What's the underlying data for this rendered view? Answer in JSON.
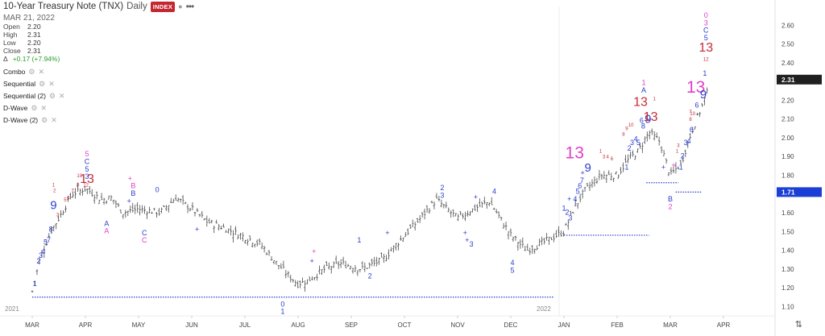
{
  "header": {
    "title": "10-Year Treasury Note (TNX)",
    "interval": "Daily",
    "badge": "INDEX",
    "date": "MAR 21, 2022",
    "ohlc": [
      {
        "label": "Open",
        "value": "2.20"
      },
      {
        "label": "High",
        "value": "2.31"
      },
      {
        "label": "Low",
        "value": "2.20"
      },
      {
        "label": "Close",
        "value": "2.31"
      }
    ],
    "change_label": "Δ",
    "change_value": "+0.17 (+7.94%)"
  },
  "studies": [
    {
      "label": "Combo"
    },
    {
      "label": "Sequential"
    },
    {
      "label": "Sequential (2)"
    },
    {
      "label": "D-Wave"
    },
    {
      "label": "D-Wave (2)"
    }
  ],
  "colors": {
    "bar": "#4a4a4a",
    "blue": "#2a3fcf",
    "magenta": "#e040c8",
    "red": "#c62b3a",
    "level": "#2a3fcf"
  },
  "chart_data": {
    "type": "ohlc",
    "ylim": [
      1.05,
      2.7
    ],
    "yticks": [
      "1.10",
      "1.20",
      "1.30",
      "1.40",
      "1.50",
      "1.60",
      "1.70",
      "1.80",
      "1.90",
      "2.00",
      "2.10",
      "2.20",
      "2.30",
      "2.40",
      "2.50",
      "2.60"
    ],
    "months": [
      "MAR",
      "APR",
      "MAY",
      "JUN",
      "JUL",
      "AUG",
      "SEP",
      "OCT",
      "NOV",
      "DEC",
      "JAN",
      "FEB",
      "MAR",
      "APR"
    ],
    "year_labels": [
      {
        "label": "2021",
        "month_index": 0
      },
      {
        "label": "2022",
        "month_index": 10
      }
    ],
    "last_price": {
      "value": 2.31,
      "label": "2.31"
    },
    "level_price": {
      "value": 1.71,
      "label": "1.71"
    },
    "price_path": [
      [
        0,
        1.18
      ],
      [
        0.15,
        1.36
      ],
      [
        0.35,
        1.5
      ],
      [
        0.5,
        1.57
      ],
      [
        0.75,
        1.7
      ],
      [
        1.0,
        1.73
      ],
      [
        1.3,
        1.67
      ],
      [
        1.5,
        1.68
      ],
      [
        1.7,
        1.6
      ],
      [
        2.0,
        1.62
      ],
      [
        2.4,
        1.6
      ],
      [
        2.7,
        1.68
      ],
      [
        3.0,
        1.62
      ],
      [
        3.3,
        1.55
      ],
      [
        3.6,
        1.52
      ],
      [
        4.0,
        1.47
      ],
      [
        4.3,
        1.43
      ],
      [
        4.6,
        1.33
      ],
      [
        4.8,
        1.27
      ],
      [
        5.0,
        1.22
      ],
      [
        5.2,
        1.24
      ],
      [
        5.5,
        1.3
      ],
      [
        5.8,
        1.33
      ],
      [
        6.2,
        1.3
      ],
      [
        6.6,
        1.35
      ],
      [
        7.0,
        1.48
      ],
      [
        7.3,
        1.57
      ],
      [
        7.6,
        1.67
      ],
      [
        8.0,
        1.57
      ],
      [
        8.3,
        1.62
      ],
      [
        8.6,
        1.66
      ],
      [
        9.0,
        1.48
      ],
      [
        9.3,
        1.4
      ],
      [
        9.6,
        1.44
      ],
      [
        10.0,
        1.5
      ],
      [
        10.2,
        1.63
      ],
      [
        10.4,
        1.72
      ],
      [
        10.7,
        1.8
      ],
      [
        11.0,
        1.8
      ],
      [
        11.2,
        1.88
      ],
      [
        11.4,
        1.93
      ],
      [
        11.6,
        2.03
      ],
      [
        11.8,
        1.98
      ],
      [
        12.0,
        1.8
      ],
      [
        12.2,
        1.86
      ],
      [
        12.4,
        2.03
      ],
      [
        12.6,
        2.17
      ],
      [
        12.72,
        2.26
      ]
    ],
    "level_lines": [
      {
        "price": 1.15,
        "from_month": 0,
        "to_month": 9.8
      },
      {
        "price": 1.48,
        "from_month": 10.0,
        "to_month": 11.6
      },
      {
        "price": 1.76,
        "from_month": 11.55,
        "to_month": 12.15
      },
      {
        "price": 1.71,
        "from_month": 12.1,
        "to_month": 12.6
      }
    ],
    "annotations": [
      {
        "text": "1",
        "m": 0.05,
        "p": 1.21,
        "c": "blue",
        "s": 9
      },
      {
        "text": "2",
        "m": 0.12,
        "p": 1.33,
        "c": "blue",
        "s": 9
      },
      {
        "text": "3",
        "m": 0.16,
        "p": 1.36,
        "c": "blue",
        "s": 9
      },
      {
        "text": "4",
        "m": 0.21,
        "p": 1.38,
        "c": "blue",
        "s": 9
      },
      {
        "text": "5",
        "m": 0.25,
        "p": 1.43,
        "c": "blue",
        "s": 9
      },
      {
        "text": "7",
        "m": 0.31,
        "p": 1.44,
        "c": "blue",
        "s": 9
      },
      {
        "text": "8",
        "m": 0.35,
        "p": 1.5,
        "c": "blue",
        "s": 9
      },
      {
        "text": "9",
        "m": 0.4,
        "p": 1.62,
        "c": "blue",
        "s": 15
      },
      {
        "text": "1",
        "m": 0.4,
        "p": 1.74,
        "c": "red",
        "s": 6
      },
      {
        "text": "2",
        "m": 0.42,
        "p": 1.71,
        "c": "red",
        "s": 6
      },
      {
        "text": "3",
        "m": 0.48,
        "p": 1.58,
        "c": "red",
        "s": 6
      },
      {
        "text": "5",
        "m": 0.62,
        "p": 1.66,
        "c": "red",
        "s": 6
      },
      {
        "text": "6",
        "m": 0.68,
        "p": 1.67,
        "c": "red",
        "s": 6
      },
      {
        "text": "7",
        "m": 0.76,
        "p": 1.71,
        "c": "red",
        "s": 6
      },
      {
        "text": "8",
        "m": 0.86,
        "p": 1.74,
        "c": "red",
        "s": 6
      },
      {
        "text": "10",
        "m": 0.89,
        "p": 1.79,
        "c": "red",
        "s": 6
      },
      {
        "text": "12",
        "m": 1.01,
        "p": 1.74,
        "c": "red",
        "s": 6
      },
      {
        "text": "13",
        "m": 1.03,
        "p": 1.76,
        "c": "red",
        "s": 16
      },
      {
        "text": "5",
        "m": 1.03,
        "p": 1.9,
        "c": "magenta",
        "s": 9
      },
      {
        "text": "C",
        "m": 1.03,
        "p": 1.86,
        "c": "blue",
        "s": 9
      },
      {
        "text": "5",
        "m": 1.03,
        "p": 1.82,
        "c": "blue",
        "s": 9
      },
      {
        "text": "3",
        "m": 1.03,
        "p": 1.78,
        "c": "blue",
        "s": 9
      },
      {
        "text": "B",
        "m": 1.9,
        "p": 1.73,
        "c": "magenta",
        "s": 9
      },
      {
        "text": "B",
        "m": 1.9,
        "p": 1.69,
        "c": "blue",
        "s": 9
      },
      {
        "text": "+",
        "m": 1.82,
        "p": 1.65,
        "c": "blue",
        "s": 9
      },
      {
        "text": "+",
        "m": 1.84,
        "p": 1.77,
        "c": "magenta",
        "s": 9
      },
      {
        "text": "0",
        "m": 2.35,
        "p": 1.71,
        "c": "blue",
        "s": 9
      },
      {
        "text": "A",
        "m": 1.4,
        "p": 1.53,
        "c": "blue",
        "s": 9
      },
      {
        "text": "A",
        "m": 1.4,
        "p": 1.49,
        "c": "magenta",
        "s": 9
      },
      {
        "text": "C",
        "m": 2.11,
        "p": 1.48,
        "c": "blue",
        "s": 9
      },
      {
        "text": "C",
        "m": 2.11,
        "p": 1.44,
        "c": "magenta",
        "s": 9
      },
      {
        "text": "+",
        "m": 3.1,
        "p": 1.5,
        "c": "blue",
        "s": 9
      },
      {
        "text": "0",
        "m": 4.71,
        "p": 1.1,
        "c": "blue",
        "s": 9
      },
      {
        "text": "1",
        "m": 4.71,
        "p": 1.06,
        "c": "blue",
        "s": 9
      },
      {
        "text": "+",
        "m": 5.3,
        "p": 1.38,
        "c": "magenta",
        "s": 9
      },
      {
        "text": "+",
        "m": 5.26,
        "p": 1.33,
        "c": "blue",
        "s": 9
      },
      {
        "text": "1",
        "m": 6.15,
        "p": 1.44,
        "c": "blue",
        "s": 9
      },
      {
        "text": "2",
        "m": 6.35,
        "p": 1.25,
        "c": "blue",
        "s": 9
      },
      {
        "text": "+",
        "m": 6.68,
        "p": 1.48,
        "c": "blue",
        "s": 9
      },
      {
        "text": "2",
        "m": 7.71,
        "p": 1.72,
        "c": "blue",
        "s": 9
      },
      {
        "text": "3",
        "m": 7.71,
        "p": 1.68,
        "c": "blue",
        "s": 9
      },
      {
        "text": "+",
        "m": 8.34,
        "p": 1.67,
        "c": "blue",
        "s": 9
      },
      {
        "text": "4",
        "m": 8.69,
        "p": 1.7,
        "c": "blue",
        "s": 9
      },
      {
        "text": "+",
        "m": 8.14,
        "p": 1.48,
        "c": "blue",
        "s": 9
      },
      {
        "text": "+",
        "m": 8.18,
        "p": 1.44,
        "c": "blue",
        "s": 9
      },
      {
        "text": "3",
        "m": 8.26,
        "p": 1.42,
        "c": "blue",
        "s": 9
      },
      {
        "text": "4",
        "m": 9.03,
        "p": 1.32,
        "c": "blue",
        "s": 9
      },
      {
        "text": "5",
        "m": 9.03,
        "p": 1.28,
        "c": "blue",
        "s": 9
      },
      {
        "text": "+",
        "m": 10.1,
        "p": 1.66,
        "c": "blue",
        "s": 9
      },
      {
        "text": "1",
        "m": 10.0,
        "p": 1.61,
        "c": "blue",
        "s": 9
      },
      {
        "text": "2",
        "m": 10.06,
        "p": 1.59,
        "c": "blue",
        "s": 9
      },
      {
        "text": "3",
        "m": 10.12,
        "p": 1.56,
        "c": "blue",
        "s": 9
      },
      {
        "text": "4",
        "m": 10.21,
        "p": 1.66,
        "c": "blue",
        "s": 9
      },
      {
        "text": "5",
        "m": 10.26,
        "p": 1.7,
        "c": "blue",
        "s": 9
      },
      {
        "text": "6",
        "m": 10.3,
        "p": 1.73,
        "c": "blue",
        "s": 9
      },
      {
        "text": "7",
        "m": 10.34,
        "p": 1.76,
        "c": "blue",
        "s": 9
      },
      {
        "text": "13",
        "m": 10.2,
        "p": 1.89,
        "c": "magenta",
        "s": 21
      },
      {
        "text": "9",
        "m": 10.45,
        "p": 1.82,
        "c": "blue",
        "s": 15
      },
      {
        "text": "+",
        "m": 10.35,
        "p": 1.8,
        "c": "blue",
        "s": 9
      },
      {
        "text": "1",
        "m": 10.69,
        "p": 1.92,
        "c": "red",
        "s": 6
      },
      {
        "text": "3",
        "m": 10.75,
        "p": 1.89,
        "c": "red",
        "s": 6
      },
      {
        "text": "4",
        "m": 10.82,
        "p": 1.89,
        "c": "red",
        "s": 6
      },
      {
        "text": "6",
        "m": 10.9,
        "p": 1.88,
        "c": "red",
        "s": 6
      },
      {
        "text": "1",
        "m": 11.18,
        "p": 1.83,
        "c": "blue",
        "s": 9
      },
      {
        "text": "2",
        "m": 11.23,
        "p": 1.93,
        "c": "blue",
        "s": 9
      },
      {
        "text": "3",
        "m": 11.28,
        "p": 1.96,
        "c": "blue",
        "s": 9
      },
      {
        "text": "4",
        "m": 11.35,
        "p": 1.98,
        "c": "blue",
        "s": 9
      },
      {
        "text": "5",
        "m": 11.4,
        "p": 1.96,
        "c": "blue",
        "s": 9
      },
      {
        "text": "6",
        "m": 11.46,
        "p": 2.08,
        "c": "blue",
        "s": 9
      },
      {
        "text": "8",
        "m": 11.49,
        "p": 2.05,
        "c": "blue",
        "s": 9
      },
      {
        "text": "9",
        "m": 11.58,
        "p": 2.08,
        "c": "blue",
        "s": 15
      },
      {
        "text": "13",
        "m": 11.44,
        "p": 2.17,
        "c": "red",
        "s": 16
      },
      {
        "text": "13",
        "m": 11.63,
        "p": 2.09,
        "c": "red",
        "s": 16
      },
      {
        "text": "1",
        "m": 11.5,
        "p": 2.28,
        "c": "magenta",
        "s": 9
      },
      {
        "text": "A",
        "m": 11.5,
        "p": 2.24,
        "c": "blue",
        "s": 9
      },
      {
        "text": "1",
        "m": 11.7,
        "p": 2.2,
        "c": "red",
        "s": 6
      },
      {
        "text": "8",
        "m": 11.12,
        "p": 2.01,
        "c": "red",
        "s": 6
      },
      {
        "text": "9",
        "m": 11.18,
        "p": 2.04,
        "c": "red",
        "s": 6
      },
      {
        "text": "10",
        "m": 11.26,
        "p": 2.06,
        "c": "red",
        "s": 6
      },
      {
        "text": "+",
        "m": 11.87,
        "p": 1.83,
        "c": "blue",
        "s": 9
      },
      {
        "text": "B",
        "m": 12.0,
        "p": 1.66,
        "c": "blue",
        "s": 9
      },
      {
        "text": "2",
        "m": 12.0,
        "p": 1.62,
        "c": "magenta",
        "s": 9
      },
      {
        "text": "+",
        "m": 12.06,
        "p": 1.84,
        "c": "magenta",
        "s": 9
      },
      {
        "text": "1",
        "m": 12.13,
        "p": 1.92,
        "c": "red",
        "s": 6
      },
      {
        "text": "3",
        "m": 12.15,
        "p": 1.95,
        "c": "red",
        "s": 6
      },
      {
        "text": "1",
        "m": 12.2,
        "p": 1.83,
        "c": "blue",
        "s": 9
      },
      {
        "text": "2",
        "m": 12.23,
        "p": 1.89,
        "c": "blue",
        "s": 9
      },
      {
        "text": "3",
        "m": 12.29,
        "p": 1.96,
        "c": "blue",
        "s": 9
      },
      {
        "text": "4",
        "m": 12.35,
        "p": 1.97,
        "c": "blue",
        "s": 9
      },
      {
        "text": "6",
        "m": 12.4,
        "p": 2.03,
        "c": "blue",
        "s": 9
      },
      {
        "text": "6",
        "m": 12.5,
        "p": 2.16,
        "c": "blue",
        "s": 9
      },
      {
        "text": "7",
        "m": 12.38,
        "p": 2.13,
        "c": "red",
        "s": 6
      },
      {
        "text": "8",
        "m": 12.38,
        "p": 2.09,
        "c": "red",
        "s": 6
      },
      {
        "text": "10",
        "m": 12.42,
        "p": 2.12,
        "c": "red",
        "s": 6
      },
      {
        "text": "13",
        "m": 12.48,
        "p": 2.24,
        "c": "magenta",
        "s": 21
      },
      {
        "text": "9",
        "m": 12.62,
        "p": 2.21,
        "c": "blue",
        "s": 15
      },
      {
        "text": "1",
        "m": 12.65,
        "p": 2.33,
        "c": "blue",
        "s": 9
      },
      {
        "text": "12",
        "m": 12.67,
        "p": 2.41,
        "c": "red",
        "s": 6
      },
      {
        "text": "13",
        "m": 12.67,
        "p": 2.46,
        "c": "red",
        "s": 16
      },
      {
        "text": "5",
        "m": 12.67,
        "p": 2.52,
        "c": "blue",
        "s": 9
      },
      {
        "text": "C",
        "m": 12.67,
        "p": 2.56,
        "c": "blue",
        "s": 9
      },
      {
        "text": "3",
        "m": 12.67,
        "p": 2.6,
        "c": "magenta",
        "s": 9
      },
      {
        "text": "0",
        "m": 12.67,
        "p": 2.64,
        "c": "magenta",
        "s": 9
      }
    ]
  }
}
